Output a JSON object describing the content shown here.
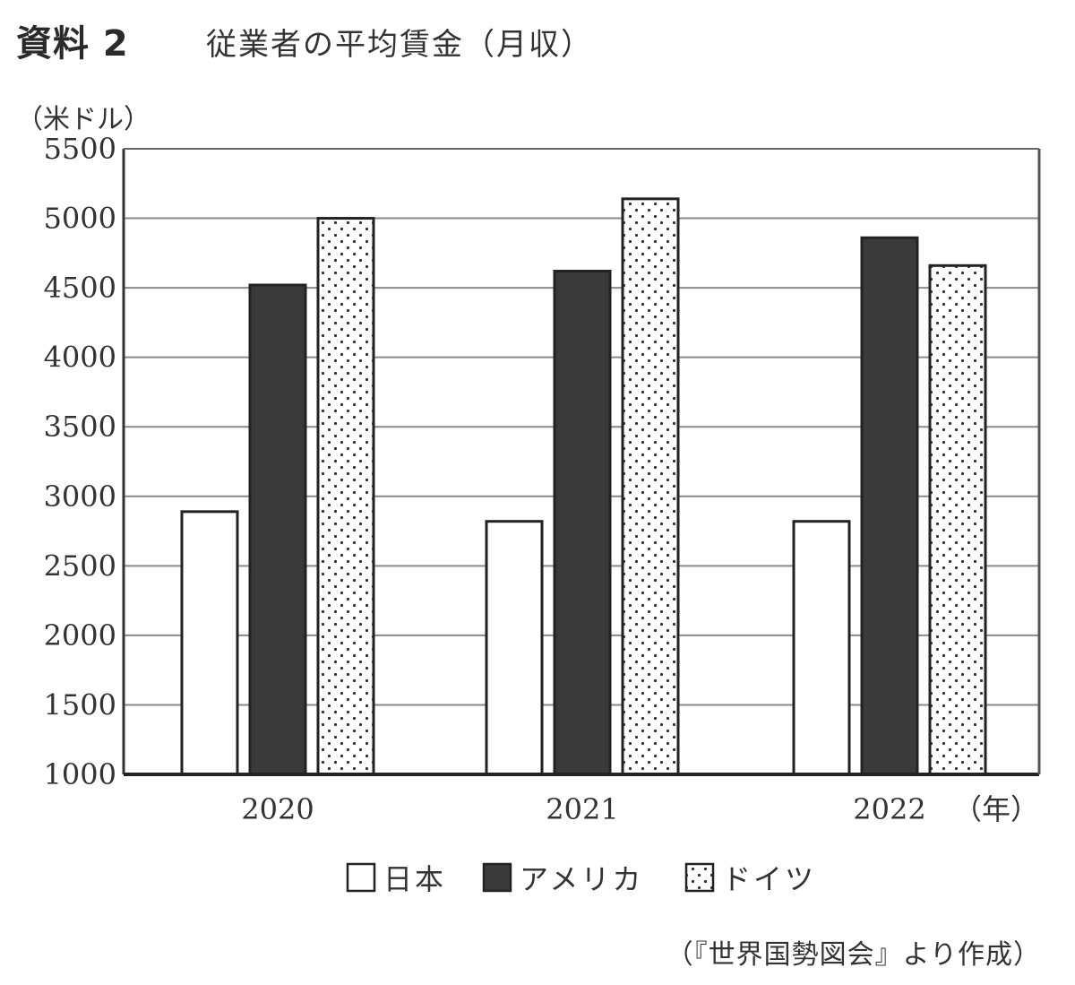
{
  "header": {
    "label": "資料 2",
    "title": "従業者の平均賃金（月収）"
  },
  "chart_data": {
    "type": "bar",
    "title": "従業者の平均賃金（月収）",
    "ylabel": "（米ドル）",
    "xlabel": "（年）",
    "categories": [
      "2020",
      "2021",
      "2022"
    ],
    "ylim": [
      1000,
      5500
    ],
    "yticks": [
      1000,
      1500,
      2000,
      2500,
      3000,
      3500,
      4000,
      4500,
      5000,
      5500
    ],
    "grid": true,
    "legend_position": "bottom",
    "series": [
      {
        "name": "日本",
        "values": [
          2890,
          2820,
          2820
        ],
        "fill": "white"
      },
      {
        "name": "アメリカ",
        "values": [
          4520,
          4620,
          4860
        ],
        "fill": "#3a3a3a"
      },
      {
        "name": "ドイツ",
        "values": [
          5000,
          5140,
          4660
        ],
        "fill": "dotted"
      }
    ]
  },
  "source": "（『世界国勢図会』より作成）"
}
